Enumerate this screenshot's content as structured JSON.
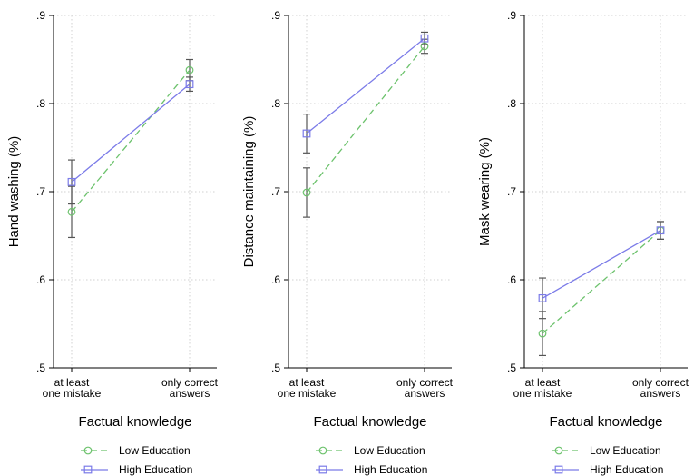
{
  "chart_data": [
    {
      "type": "line",
      "panel": "hand-washing",
      "title": "",
      "ylabel": "Hand washing (%)",
      "xlabel": "Factual knowledge",
      "categories": [
        [
          "at least",
          "one mistake"
        ],
        [
          "only correct",
          "answers"
        ]
      ],
      "ylim": [
        0.5,
        0.9
      ],
      "yticks": [
        ".5",
        ".6",
        ".7",
        ".8",
        ".9"
      ],
      "grid": true,
      "legend_position": "bottom",
      "series": [
        {
          "name": "Low Education",
          "values": [
            0.677,
            0.838
          ],
          "ci_low": [
            0.648,
            0.826
          ],
          "ci_high": [
            0.706,
            0.85
          ]
        },
        {
          "name": "High Education",
          "values": [
            0.711,
            0.822
          ],
          "ci_low": [
            0.686,
            0.814
          ],
          "ci_high": [
            0.736,
            0.83
          ]
        }
      ]
    },
    {
      "type": "line",
      "panel": "distance-maintaining",
      "title": "",
      "ylabel": "Distance maintaining (%)",
      "xlabel": "Factual knowledge",
      "categories": [
        [
          "at least",
          "one mistake"
        ],
        [
          "only correct",
          "answers"
        ]
      ],
      "ylim": [
        0.5,
        0.9
      ],
      "yticks": [
        ".5",
        ".6",
        ".7",
        ".8",
        ".9"
      ],
      "grid": true,
      "legend_position": "bottom",
      "series": [
        {
          "name": "Low Education",
          "values": [
            0.699,
            0.865
          ],
          "ci_low": [
            0.671,
            0.857
          ],
          "ci_high": [
            0.727,
            0.873
          ]
        },
        {
          "name": "High Education",
          "values": [
            0.766,
            0.874
          ],
          "ci_low": [
            0.744,
            0.867
          ],
          "ci_high": [
            0.788,
            0.881
          ]
        }
      ]
    },
    {
      "type": "line",
      "panel": "mask-wearing",
      "title": "",
      "ylabel": "Mask wearing (%)",
      "xlabel": "Factual knowledge",
      "categories": [
        [
          "at least",
          "one mistake"
        ],
        [
          "only correct",
          "answers"
        ]
      ],
      "ylim": [
        0.5,
        0.9
      ],
      "yticks": [
        ".5",
        ".6",
        ".7",
        ".8",
        ".9"
      ],
      "grid": true,
      "legend_position": "bottom",
      "series": [
        {
          "name": "Low Education",
          "values": [
            0.539,
            0.656
          ],
          "ci_low": [
            0.514,
            0.646
          ],
          "ci_high": [
            0.564,
            0.666
          ]
        },
        {
          "name": "High Education",
          "values": [
            0.579,
            0.656
          ],
          "ci_low": [
            0.556,
            0.646
          ],
          "ci_high": [
            0.602,
            0.666
          ]
        }
      ]
    }
  ],
  "legend": [
    {
      "name": "Low Education",
      "color": "#6cc26c",
      "marker": "circle",
      "dash": "dashed"
    },
    {
      "name": "High Education",
      "color": "#7b7be8",
      "marker": "square",
      "dash": "solid"
    }
  ],
  "colors": {
    "low": "#6cc26c",
    "high": "#7b7be8",
    "ci": "#555555",
    "grid": "#d0d0d0",
    "axis": "#000000"
  }
}
